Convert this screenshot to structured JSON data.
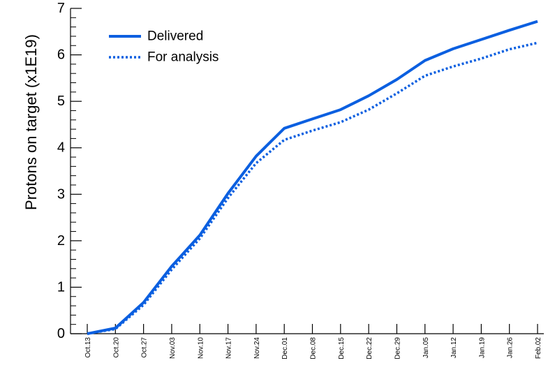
{
  "chart_data": {
    "type": "line",
    "title": "",
    "xlabel": "",
    "ylabel": "Protons on target (x1E19)",
    "ylim": [
      0,
      7
    ],
    "yticks": [
      "0",
      "1",
      "2",
      "3",
      "4",
      "5",
      "6",
      "7"
    ],
    "categories": [
      "Oct.13",
      "Oct.20",
      "Oct.27",
      "Nov.03",
      "Nov.10",
      "Nov.17",
      "Nov.24",
      "Dec.01",
      "Dec.08",
      "Dec.15",
      "Dec.22",
      "Dec.29",
      "Jan.05",
      "Jan.12",
      "Jan.19",
      "Jan.26",
      "Feb.02"
    ],
    "grid": false,
    "legend_position": "top-left",
    "series": [
      {
        "name": "Delivered",
        "style": "solid",
        "color": "#0b5fe0",
        "values": [
          0.0,
          0.12,
          0.67,
          1.45,
          2.12,
          3.02,
          3.82,
          4.42,
          4.62,
          4.82,
          5.12,
          5.47,
          5.88,
          6.13,
          6.33,
          6.53,
          6.72
        ]
      },
      {
        "name": "For analysis",
        "style": "dotted",
        "color": "#0b5fe0",
        "values": [
          0.0,
          0.1,
          0.62,
          1.38,
          2.05,
          2.92,
          3.67,
          4.17,
          4.37,
          4.55,
          4.82,
          5.17,
          5.55,
          5.75,
          5.92,
          6.12,
          6.26
        ]
      }
    ]
  }
}
